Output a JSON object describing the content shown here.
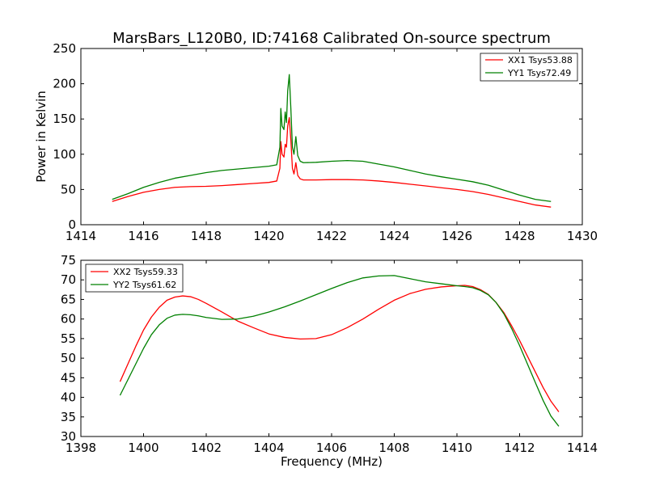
{
  "figure": {
    "title": "MarsBars_L120B0, ID:74168 Calibrated On-source spectrum"
  },
  "chart_data": [
    {
      "type": "line",
      "xlabel": "",
      "ylabel": "Power in Kelvin",
      "xlim": [
        1414,
        1430
      ],
      "ylim": [
        0,
        250
      ],
      "xticks": [
        "1414",
        "1416",
        "1418",
        "1420",
        "1422",
        "1424",
        "1426",
        "1428",
        "1430"
      ],
      "yticks": [
        "0",
        "50",
        "100",
        "150",
        "200",
        "250"
      ],
      "legend": {
        "placement": "top-right"
      },
      "series": [
        {
          "name": "XX1 Tsys53.88",
          "color": "#ff0000",
          "x": [
            1415.0,
            1415.5,
            1416.0,
            1416.5,
            1417.0,
            1417.5,
            1418.0,
            1418.5,
            1419.0,
            1419.5,
            1420.0,
            1420.25,
            1420.35,
            1420.38,
            1420.42,
            1420.48,
            1420.52,
            1420.56,
            1420.6,
            1420.65,
            1420.7,
            1420.75,
            1420.8,
            1420.86,
            1420.92,
            1421.0,
            1421.1,
            1421.5,
            1422.0,
            1422.5,
            1423.0,
            1423.5,
            1424.0,
            1424.5,
            1425.0,
            1425.5,
            1426.0,
            1426.5,
            1427.0,
            1427.5,
            1428.0,
            1428.5,
            1429.0
          ],
          "values": [
            33,
            40,
            46,
            50,
            53,
            54,
            54.5,
            55.5,
            57,
            58.5,
            60,
            62,
            80,
            118,
            100,
            96,
            114,
            110,
            140,
            152,
            120,
            80,
            72,
            88,
            70,
            65,
            63.5,
            63.5,
            64,
            64,
            63.5,
            62,
            60,
            57.5,
            55,
            52.5,
            50,
            47,
            43,
            38,
            33,
            28,
            25
          ]
        },
        {
          "name": "YY1 Tsys72.49",
          "color": "#008000",
          "x": [
            1415.0,
            1415.5,
            1416.0,
            1416.5,
            1417.0,
            1417.5,
            1418.0,
            1418.5,
            1419.0,
            1419.5,
            1420.0,
            1420.25,
            1420.35,
            1420.38,
            1420.42,
            1420.48,
            1420.52,
            1420.56,
            1420.6,
            1420.65,
            1420.7,
            1420.75,
            1420.8,
            1420.86,
            1420.92,
            1421.0,
            1421.1,
            1421.5,
            1422.0,
            1422.5,
            1423.0,
            1423.5,
            1424.0,
            1424.5,
            1425.0,
            1425.5,
            1426.0,
            1426.5,
            1427.0,
            1427.5,
            1428.0,
            1428.5,
            1429.0
          ],
          "values": [
            36,
            44,
            53,
            60,
            66,
            70,
            74,
            77,
            79,
            81,
            83,
            85,
            110,
            165,
            140,
            135,
            160,
            145,
            190,
            213,
            165,
            110,
            100,
            125,
            98,
            90,
            88,
            88.5,
            90,
            91,
            90,
            86,
            82,
            77,
            72,
            68,
            64.5,
            61,
            56,
            49,
            42,
            36,
            33
          ]
        }
      ]
    },
    {
      "type": "line",
      "xlabel": "Frequency (MHz)",
      "ylabel": "",
      "xlim": [
        1398,
        1414
      ],
      "ylim": [
        30,
        75
      ],
      "xticks": [
        "1398",
        "1400",
        "1402",
        "1404",
        "1406",
        "1408",
        "1410",
        "1412",
        "1414"
      ],
      "yticks": [
        "30",
        "35",
        "40",
        "45",
        "50",
        "55",
        "60",
        "65",
        "70",
        "75"
      ],
      "legend": {
        "placement": "top-left"
      },
      "series": [
        {
          "name": "XX2 Tsys59.33",
          "color": "#ff0000",
          "x": [
            1399.25,
            1399.5,
            1399.75,
            1400.0,
            1400.25,
            1400.5,
            1400.75,
            1401.0,
            1401.25,
            1401.5,
            1401.75,
            1402.0,
            1402.5,
            1403.0,
            1403.5,
            1404.0,
            1404.5,
            1405.0,
            1405.5,
            1406.0,
            1406.5,
            1407.0,
            1407.5,
            1408.0,
            1408.5,
            1409.0,
            1409.5,
            1410.0,
            1410.25,
            1410.5,
            1410.75,
            1411.0,
            1411.25,
            1411.5,
            1411.75,
            1412.0,
            1412.25,
            1412.5,
            1412.75,
            1413.0,
            1413.25
          ],
          "values": [
            44,
            48.5,
            53,
            57.2,
            60.5,
            63,
            64.8,
            65.6,
            65.9,
            65.7,
            65,
            64,
            61.8,
            59.5,
            57.8,
            56.2,
            55.3,
            54.9,
            55,
            56,
            57.8,
            60,
            62.5,
            64.8,
            66.5,
            67.6,
            68.2,
            68.5,
            68.6,
            68.3,
            67.5,
            66.3,
            64.2,
            61.6,
            58.2,
            54.5,
            50.5,
            46.5,
            42.5,
            39,
            36.3
          ]
        },
        {
          "name": "YY2 Tsys61.62",
          "color": "#008000",
          "x": [
            1399.25,
            1399.5,
            1399.75,
            1400.0,
            1400.25,
            1400.5,
            1400.75,
            1401.0,
            1401.25,
            1401.5,
            1401.75,
            1402.0,
            1402.5,
            1403.0,
            1403.5,
            1404.0,
            1404.5,
            1405.0,
            1405.5,
            1406.0,
            1406.5,
            1407.0,
            1407.5,
            1408.0,
            1408.5,
            1409.0,
            1409.5,
            1410.0,
            1410.25,
            1410.5,
            1410.75,
            1411.0,
            1411.25,
            1411.5,
            1411.75,
            1412.0,
            1412.25,
            1412.5,
            1412.75,
            1413.0,
            1413.25
          ],
          "values": [
            40.5,
            44.5,
            48.5,
            52.5,
            56,
            58.5,
            60.2,
            61,
            61.2,
            61.1,
            60.8,
            60.4,
            59.9,
            60,
            60.7,
            61.8,
            63.1,
            64.6,
            66.2,
            67.8,
            69.3,
            70.5,
            71,
            71.1,
            70.3,
            69.5,
            69,
            68.5,
            68.3,
            68,
            67.3,
            66.2,
            64.2,
            61.3,
            57.5,
            53.2,
            48.5,
            43.8,
            39.2,
            35.2,
            32.6
          ]
        }
      ]
    }
  ]
}
